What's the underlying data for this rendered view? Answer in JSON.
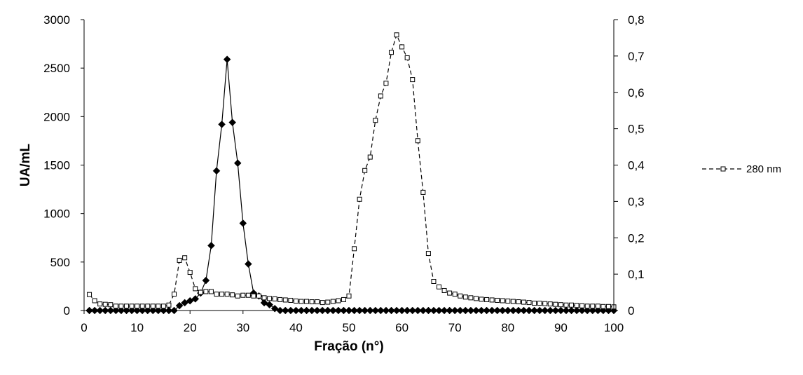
{
  "chart_data": {
    "type": "line",
    "title": "",
    "xlabel": "Fração (n°)",
    "ylabel": "UA/mL",
    "y2label": "",
    "xlim": [
      0,
      100
    ],
    "ylim": [
      0,
      3000
    ],
    "y2lim": [
      0,
      0.8
    ],
    "x_ticks": [
      "0",
      "10",
      "20",
      "30",
      "40",
      "50",
      "60",
      "70",
      "80",
      "90",
      "100"
    ],
    "y_ticks": [
      "0",
      "500",
      "1000",
      "1500",
      "2000",
      "2500",
      "3000"
    ],
    "y2_ticks": [
      "0",
      "0,1",
      "0,2",
      "0,3",
      "0,4",
      "0,5",
      "0,6",
      "0,7",
      "0,8"
    ],
    "grid": false,
    "legend_position": "right",
    "series": [
      {
        "name": "",
        "axis": "left",
        "style": "solid",
        "marker": "filled-diamond",
        "x": [
          1,
          2,
          3,
          4,
          5,
          6,
          7,
          8,
          9,
          10,
          11,
          12,
          13,
          14,
          15,
          16,
          17,
          18,
          19,
          20,
          21,
          22,
          23,
          24,
          25,
          26,
          27,
          28,
          29,
          30,
          31,
          32,
          33,
          34,
          35,
          36,
          37,
          38,
          39,
          40,
          41,
          42,
          43,
          44,
          45,
          46,
          47,
          48,
          49,
          50,
          51,
          52,
          53,
          54,
          55,
          56,
          57,
          58,
          59,
          60,
          61,
          62,
          63,
          64,
          65,
          66,
          67,
          68,
          69,
          70,
          71,
          72,
          73,
          74,
          75,
          76,
          77,
          78,
          79,
          80,
          81,
          82,
          83,
          84,
          85,
          86,
          87,
          88,
          89,
          90,
          91,
          92,
          93,
          94,
          95,
          96,
          97,
          98,
          99,
          100
        ],
        "values": [
          0,
          0,
          0,
          0,
          0,
          0,
          0,
          0,
          0,
          0,
          0,
          0,
          0,
          0,
          0,
          0,
          0,
          50,
          80,
          100,
          120,
          180,
          310,
          670,
          1440,
          1920,
          2590,
          1940,
          1520,
          900,
          480,
          180,
          150,
          80,
          60,
          20,
          0,
          0,
          0,
          0,
          0,
          0,
          0,
          0,
          0,
          0,
          0,
          0,
          0,
          0,
          0,
          0,
          0,
          0,
          0,
          0,
          0,
          0,
          0,
          0,
          0,
          0,
          0,
          0,
          0,
          0,
          0,
          0,
          0,
          0,
          0,
          0,
          0,
          0,
          0,
          0,
          0,
          0,
          0,
          0,
          0,
          0,
          0,
          0,
          0,
          0,
          0,
          0,
          0,
          0,
          0,
          0,
          0,
          0,
          0,
          0,
          0,
          0,
          0,
          0
        ]
      },
      {
        "name": "280 nm",
        "axis": "right",
        "style": "dashed",
        "marker": "open-square",
        "x": [
          1,
          2,
          3,
          4,
          5,
          6,
          7,
          8,
          9,
          10,
          11,
          12,
          13,
          14,
          15,
          16,
          17,
          18,
          19,
          20,
          21,
          22,
          23,
          24,
          25,
          26,
          27,
          28,
          29,
          30,
          31,
          32,
          33,
          34,
          35,
          36,
          37,
          38,
          39,
          40,
          41,
          42,
          43,
          44,
          45,
          46,
          47,
          48,
          49,
          50,
          51,
          52,
          53,
          54,
          55,
          56,
          57,
          58,
          59,
          60,
          61,
          62,
          63,
          64,
          65,
          66,
          67,
          68,
          69,
          70,
          71,
          72,
          73,
          74,
          75,
          76,
          77,
          78,
          79,
          80,
          81,
          82,
          83,
          84,
          85,
          86,
          87,
          88,
          89,
          90,
          91,
          92,
          93,
          94,
          95,
          96,
          97,
          98,
          99,
          100
        ],
        "values": [
          0.044,
          0.027,
          0.018,
          0.017,
          0.016,
          0.012,
          0.012,
          0.012,
          0.012,
          0.012,
          0.012,
          0.012,
          0.012,
          0.012,
          0.012,
          0.015,
          0.045,
          0.138,
          0.145,
          0.105,
          0.06,
          0.05,
          0.052,
          0.052,
          0.045,
          0.045,
          0.045,
          0.043,
          0.04,
          0.042,
          0.042,
          0.04,
          0.04,
          0.035,
          0.033,
          0.032,
          0.03,
          0.029,
          0.028,
          0.026,
          0.025,
          0.025,
          0.024,
          0.024,
          0.022,
          0.023,
          0.025,
          0.027,
          0.03,
          0.04,
          0.17,
          0.306,
          0.385,
          0.422,
          0.523,
          0.59,
          0.625,
          0.71,
          0.758,
          0.725,
          0.695,
          0.635,
          0.467,
          0.325,
          0.157,
          0.08,
          0.065,
          0.055,
          0.048,
          0.045,
          0.04,
          0.037,
          0.035,
          0.033,
          0.031,
          0.03,
          0.029,
          0.028,
          0.027,
          0.026,
          0.025,
          0.024,
          0.023,
          0.022,
          0.02,
          0.02,
          0.019,
          0.018,
          0.017,
          0.016,
          0.015,
          0.015,
          0.014,
          0.013,
          0.012,
          0.012,
          0.012,
          0.011,
          0.011,
          0.01
        ]
      }
    ]
  }
}
